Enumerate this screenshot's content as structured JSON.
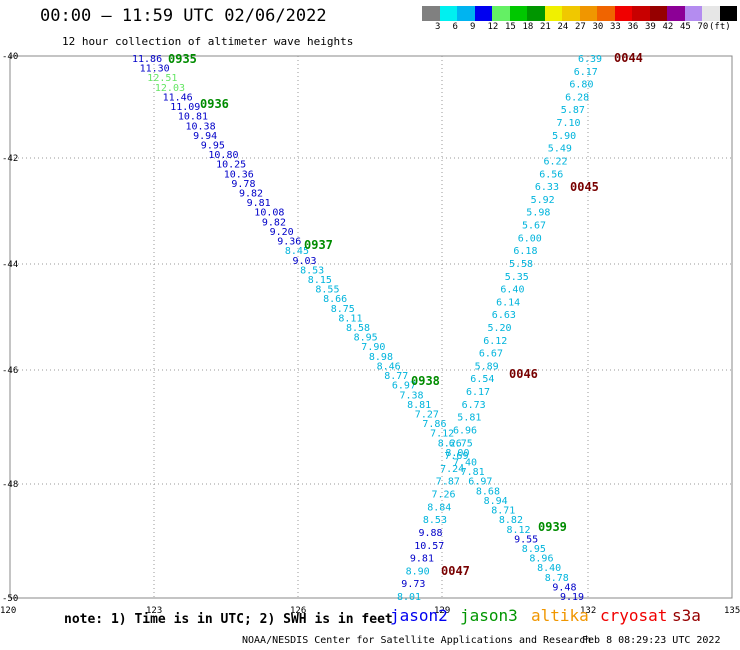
{
  "header": {
    "title": "00:00 – 11:59 UTC 02/06/2022",
    "subtitle": "12 hour collection of altimeter wave heights"
  },
  "color_scale": {
    "unit": "(ft)",
    "swatches": [
      "#808080",
      "#00f0f0",
      "#00b4f0",
      "#0000f0",
      "#64f064",
      "#00c800",
      "#009600",
      "#f0f000",
      "#f0c800",
      "#f09600",
      "#f06400",
      "#f00000",
      "#c80000",
      "#960000",
      "#8c0096",
      "#b48cf0",
      "#e6e6e6",
      "#000000"
    ],
    "labels": [
      "3",
      "6",
      "9",
      "12",
      "15",
      "18",
      "21",
      "24",
      "27",
      "30",
      "33",
      "36",
      "39",
      "42",
      "45",
      "70"
    ]
  },
  "axes": {
    "lat_labels": [
      "-40",
      "-42",
      "-44",
      "-46",
      "-48",
      "-50"
    ],
    "lon_labels": [
      "120",
      "123",
      "126",
      "129",
      "132",
      "135"
    ]
  },
  "pass_colors": {
    "jason2": "#0000c8",
    "jason3": "#008c00",
    "altika": "#f09600",
    "cryosat": "#c80000",
    "s3a": "#780000",
    "cyan": "#00b4dc",
    "lightgreen": "#64e664"
  },
  "pass_times": [
    {
      "label": "0935",
      "color": "#008c00"
    },
    {
      "label": "0936",
      "color": "#008c00"
    },
    {
      "label": "0937",
      "color": "#008c00"
    },
    {
      "label": "0938",
      "color": "#008c00"
    },
    {
      "label": "0939",
      "color": "#008c00"
    },
    {
      "label": "0044",
      "color": "#780000"
    },
    {
      "label": "0045",
      "color": "#780000"
    },
    {
      "label": "0046",
      "color": "#780000"
    },
    {
      "label": "0047",
      "color": "#780000"
    }
  ],
  "track_a": {
    "values": [
      "11.86",
      "11.30",
      "12.51",
      "12.03",
      "11.46",
      "11.09",
      "10.81",
      "10.38",
      "9.94",
      "9.95",
      "10.80",
      "10.25",
      "10.36",
      "9.78",
      "9.82",
      "9.81",
      "10.08",
      "9.82",
      "9.20",
      "9.36",
      "8.45",
      "9.03",
      "8.53",
      "8.15",
      "8.55",
      "8.66",
      "8.75",
      "8.11",
      "8.58",
      "8.95",
      "7.90",
      "8.98",
      "8.46",
      "8.77",
      "6.97",
      "7.38",
      "8.81",
      "7.27",
      "7.86",
      "7.12",
      "8.26",
      "8.00",
      "7.40",
      "7.81",
      "6.97",
      "8.68",
      "8.94",
      "8.71",
      "8.82",
      "8.12",
      "9.55",
      "8.95",
      "8.96",
      "8.40",
      "8.78",
      "9.48",
      "9.19"
    ],
    "colors": [
      "#0000c8",
      "#0000c8",
      "#64e664",
      "#64e664",
      "#0000c8",
      "#0000c8",
      "#0000c8",
      "#0000c8",
      "#0000c8",
      "#0000c8",
      "#0000c8",
      "#0000c8",
      "#0000c8",
      "#0000c8",
      "#0000c8",
      "#0000c8",
      "#0000c8",
      "#0000c8",
      "#0000c8",
      "#0000c8",
      "#00b4dc",
      "#0000c8",
      "#00b4dc",
      "#00b4dc",
      "#00b4dc",
      "#00b4dc",
      "#00b4dc",
      "#00b4dc",
      "#00b4dc",
      "#00b4dc",
      "#00b4dc",
      "#00b4dc",
      "#00b4dc",
      "#00b4dc",
      "#00b4dc",
      "#00b4dc",
      "#00b4dc",
      "#00b4dc",
      "#00b4dc",
      "#00b4dc",
      "#00b4dc",
      "#00b4dc",
      "#00b4dc",
      "#00b4dc",
      "#00b4dc",
      "#00b4dc",
      "#00b4dc",
      "#00b4dc",
      "#00b4dc",
      "#00b4dc",
      "#0000c8",
      "#00b4dc",
      "#00b4dc",
      "#00b4dc",
      "#00b4dc",
      "#0000c8",
      "#0000c8"
    ]
  },
  "track_b": {
    "values": [
      "6.39",
      "6.17",
      "6.80",
      "6.28",
      "5.87",
      "7.10",
      "5.90",
      "5.49",
      "6.22",
      "6.56",
      "6.33",
      "5.92",
      "5.98",
      "5.67",
      "6.00",
      "6.18",
      "5.58",
      "5.35",
      "6.40",
      "6.14",
      "6.63",
      "5.20",
      "6.12",
      "6.67",
      "5.89",
      "6.54",
      "6.17",
      "6.73",
      "5.81",
      "6.96",
      "6.75",
      "7.69",
      "7.24",
      "7.87",
      "7.26",
      "8.84",
      "8.53",
      "9.88",
      "10.57",
      "9.81",
      "8.90",
      "9.73",
      "8.01"
    ],
    "colors": [
      "#00b4dc",
      "#00b4dc",
      "#00b4dc",
      "#00b4dc",
      "#00b4dc",
      "#00b4dc",
      "#00b4dc",
      "#00b4dc",
      "#00b4dc",
      "#00b4dc",
      "#00b4dc",
      "#00b4dc",
      "#00b4dc",
      "#00b4dc",
      "#00b4dc",
      "#00b4dc",
      "#00b4dc",
      "#00b4dc",
      "#00b4dc",
      "#00b4dc",
      "#00b4dc",
      "#00b4dc",
      "#00b4dc",
      "#00b4dc",
      "#00b4dc",
      "#00b4dc",
      "#00b4dc",
      "#00b4dc",
      "#00b4dc",
      "#00b4dc",
      "#00b4dc",
      "#00b4dc",
      "#00b4dc",
      "#00b4dc",
      "#00b4dc",
      "#00b4dc",
      "#00b4dc",
      "#0000c8",
      "#0000c8",
      "#0000c8",
      "#00b4dc",
      "#0000c8",
      "#00b4dc"
    ]
  },
  "footer": {
    "note": "note: 1) Time is in UTC; 2) SWH is in feet",
    "legend": [
      {
        "label": "jason2",
        "color": "#0000f0"
      },
      {
        "label": "jason3",
        "color": "#009600"
      },
      {
        "label": "altika",
        "color": "#f09600"
      },
      {
        "label": "cryosat",
        "color": "#f00000"
      },
      {
        "label": "s3a",
        "color": "#960000"
      }
    ],
    "credit": "NOAA/NESDIS Center for Satellite Applications and Research",
    "timestamp": "Feb  8 08:29:23 UTC 2022"
  }
}
